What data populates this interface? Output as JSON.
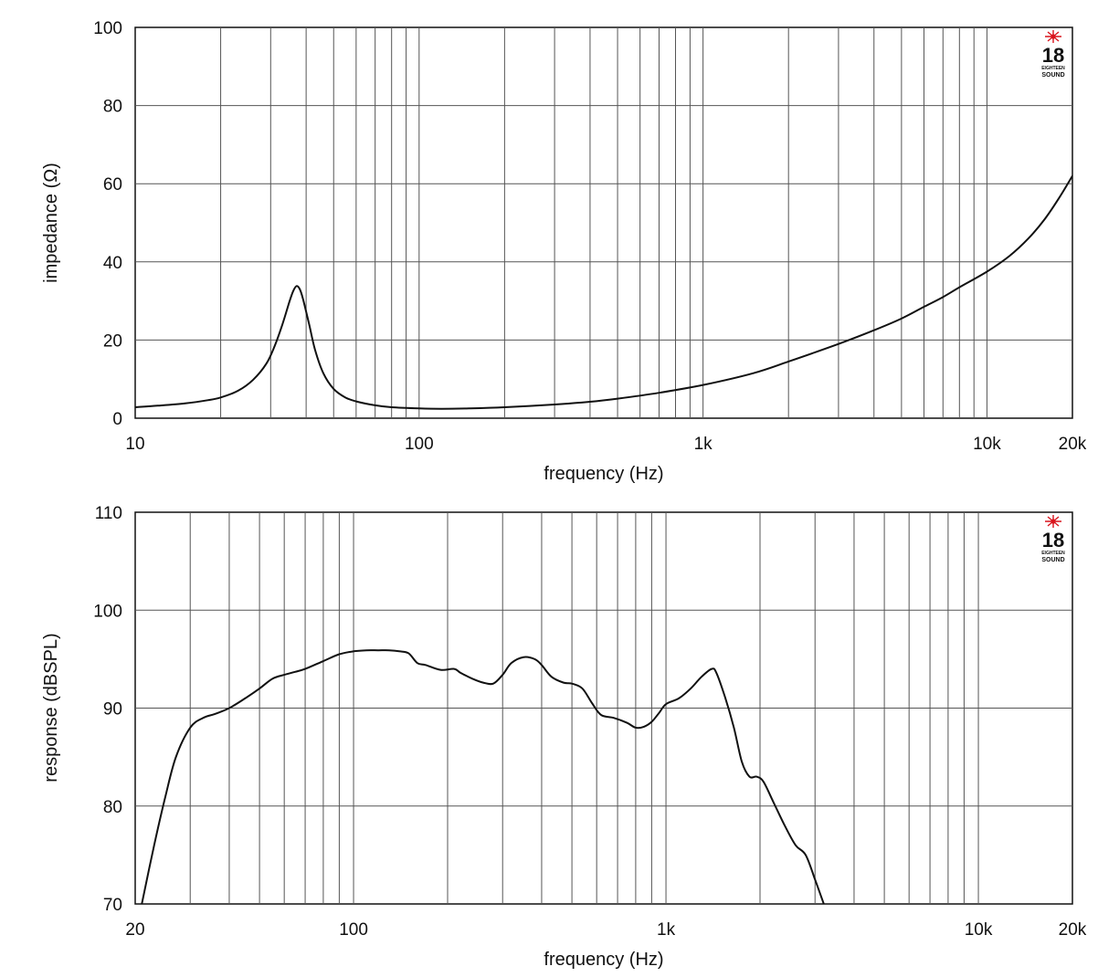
{
  "charts": [
    {
      "id": "impedance",
      "type": "line",
      "xscale": "log",
      "xlabel": "frequency (Hz)",
      "ylabel": "impedance (Ω)",
      "xlim": [
        10,
        20000
      ],
      "ylim": [
        0,
        100
      ],
      "x_ticks": [
        {
          "value": 10,
          "label": "10"
        },
        {
          "value": 100,
          "label": "100"
        },
        {
          "value": 1000,
          "label": "1k"
        },
        {
          "value": 10000,
          "label": "10k"
        },
        {
          "value": 20000,
          "label": "20k"
        }
      ],
      "y_ticks": [
        {
          "value": 0,
          "label": "0"
        },
        {
          "value": 20,
          "label": "20"
        },
        {
          "value": 40,
          "label": "40"
        },
        {
          "value": 60,
          "label": "60"
        },
        {
          "value": 80,
          "label": "80"
        },
        {
          "value": 100,
          "label": "100"
        }
      ],
      "grid": true,
      "logo": {
        "number": "18",
        "caption": "EIGHTEEN",
        "word": "SOUND"
      },
      "series": [
        {
          "color": "#111111",
          "x": [
            10,
            12,
            15,
            18,
            20,
            23,
            26,
            29,
            31,
            33,
            35,
            36,
            37,
            38,
            39,
            41,
            43,
            46,
            50,
            55,
            60,
            70,
            80,
            100,
            120,
            150,
            200,
            300,
            400,
            500,
            700,
            1000,
            1500,
            2000,
            3000,
            4000,
            5000,
            6000,
            7000,
            8000,
            10000,
            12000,
            14000,
            16000,
            18000,
            20000
          ],
          "y": [
            2.8,
            3.2,
            3.8,
            4.6,
            5.3,
            7.0,
            9.8,
            14.0,
            18.5,
            24.0,
            30.0,
            32.5,
            33.8,
            33.0,
            30.5,
            24.0,
            17.5,
            11.5,
            7.5,
            5.3,
            4.3,
            3.3,
            2.8,
            2.5,
            2.4,
            2.5,
            2.8,
            3.5,
            4.2,
            5.0,
            6.5,
            8.5,
            11.5,
            14.5,
            19.0,
            22.5,
            25.5,
            28.5,
            31.0,
            33.5,
            37.5,
            41.5,
            46.0,
            51.0,
            56.5,
            62.0
          ]
        }
      ]
    },
    {
      "id": "response",
      "type": "line",
      "xscale": "log",
      "xlabel": "frequency (Hz)",
      "ylabel": "response (dBSPL)",
      "xlim": [
        20,
        20000
      ],
      "ylim": [
        70,
        110
      ],
      "x_ticks": [
        {
          "value": 20,
          "label": "20"
        },
        {
          "value": 100,
          "label": "100"
        },
        {
          "value": 1000,
          "label": "1k"
        },
        {
          "value": 10000,
          "label": "10k"
        },
        {
          "value": 20000,
          "label": "20k"
        }
      ],
      "y_ticks": [
        {
          "value": 70,
          "label": "70"
        },
        {
          "value": 80,
          "label": "80"
        },
        {
          "value": 90,
          "label": "90"
        },
        {
          "value": 100,
          "label": "100"
        },
        {
          "value": 110,
          "label": "110"
        }
      ],
      "grid": true,
      "logo": {
        "number": "18",
        "caption": "EIGHTEEN",
        "word": "SOUND"
      },
      "series": [
        {
          "color": "#111111",
          "x": [
            21,
            23,
            25,
            27,
            30,
            33,
            36,
            40,
            45,
            50,
            55,
            60,
            65,
            70,
            80,
            90,
            100,
            110,
            120,
            130,
            140,
            150,
            160,
            170,
            190,
            210,
            220,
            240,
            260,
            280,
            300,
            320,
            350,
            380,
            400,
            430,
            470,
            500,
            540,
            580,
            620,
            680,
            750,
            800,
            850,
            900,
            950,
            1000,
            1100,
            1200,
            1300,
            1400,
            1450,
            1550,
            1650,
            1750,
            1850,
            1950,
            2050,
            2200,
            2400,
            2600,
            2800,
            3000,
            3200
          ],
          "y": [
            70.0,
            76.0,
            81.0,
            85.0,
            88.0,
            89.0,
            89.4,
            90.0,
            91.0,
            92.0,
            93.0,
            93.4,
            93.7,
            94.0,
            94.8,
            95.5,
            95.8,
            95.9,
            95.9,
            95.9,
            95.8,
            95.6,
            94.6,
            94.4,
            93.9,
            94.0,
            93.6,
            93.0,
            92.6,
            92.5,
            93.4,
            94.6,
            95.2,
            95.0,
            94.4,
            93.2,
            92.6,
            92.5,
            92.0,
            90.5,
            89.3,
            89.0,
            88.5,
            88.0,
            88.1,
            88.6,
            89.5,
            90.4,
            91.0,
            92.0,
            93.2,
            94.0,
            93.6,
            91.0,
            88.0,
            84.5,
            83.0,
            83.0,
            82.5,
            80.5,
            78.0,
            76.0,
            75.0,
            72.5,
            70.0
          ]
        }
      ]
    }
  ]
}
